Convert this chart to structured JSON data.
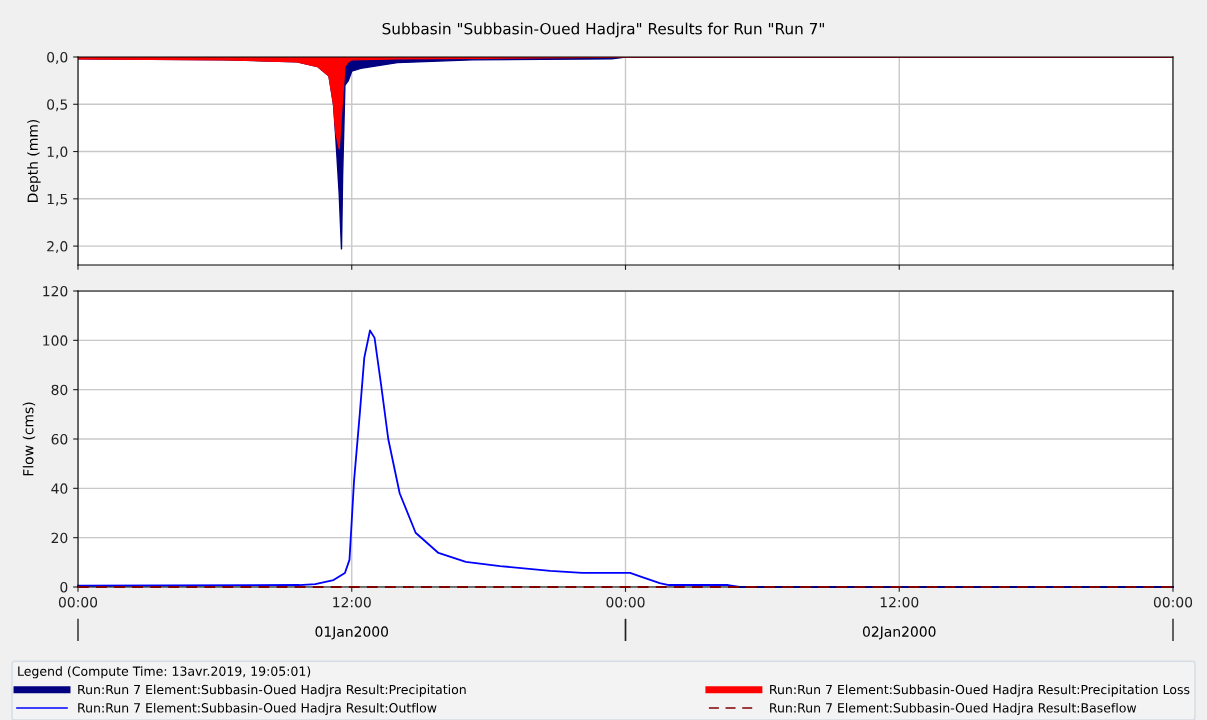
{
  "chart_data": [
    {
      "type": "area",
      "title": "Subbasin \"Subbasin-Oued Hadjra\" Results for Run \"Run 7\"",
      "ylabel": "Depth (mm)",
      "xlim": [
        "2000-01-01T00:00",
        "2000-01-03T00:00"
      ],
      "xticks": [
        {
          "value": "2000-01-01T00:00",
          "label": null
        },
        {
          "value": "2000-01-01T12:00",
          "label": null
        },
        {
          "value": "2000-01-02T00:00",
          "label": null
        },
        {
          "value": "2000-01-02T12:00",
          "label": null
        },
        {
          "value": "2000-01-03T00:00",
          "label": null
        }
      ],
      "ylim": [
        2.2,
        0
      ],
      "yticks": [
        {
          "value": 0,
          "label": "0,0"
        },
        {
          "value": 0.5,
          "label": "0,5"
        },
        {
          "value": 1,
          "label": "1,0"
        },
        {
          "value": 1.5,
          "label": "1,5"
        },
        {
          "value": 2,
          "label": "2,0"
        }
      ],
      "tick_labels": "y",
      "grid": true,
      "legend": "bottom",
      "series": [
        {
          "name": "Run:Run 7 Element:Subbasin-Oued Hadjra Result:Precipitation",
          "color": "#000080",
          "x": [
            "2000-01-01T00:00",
            "2000-01-01T06:24",
            "2000-01-01T08:00",
            "2000-01-01T09:36",
            "2000-01-01T10:30",
            "2000-01-01T11:00",
            "2000-01-01T11:12",
            "2000-01-01T11:18",
            "2000-01-01T11:27",
            "2000-01-01T11:33",
            "2000-01-01T11:36",
            "2000-01-01T11:42",
            "2000-01-01T11:51",
            "2000-01-01T12:00",
            "2000-01-01T12:24",
            "2000-01-01T14:00",
            "2000-01-01T17:18",
            "2000-01-01T23:24",
            "2000-01-02T00:00",
            "2000-01-03T00:00"
          ],
          "values": [
            0.02,
            0.03,
            0.04,
            0.05,
            0.1,
            0.2,
            0.5,
            0.85,
            1.45,
            2.03,
            1.25,
            0.3,
            0.25,
            0.15,
            0.12,
            0.06,
            0.03,
            0.02,
            0,
            0
          ]
        },
        {
          "name": "Run:Run 7 Element:Subbasin-Oued Hadjra Result:Precipitation Loss",
          "color": "#ff0000",
          "x": [
            "2000-01-01T00:00",
            "2000-01-01T06:24",
            "2000-01-01T08:00",
            "2000-01-01T09:36",
            "2000-01-01T10:30",
            "2000-01-01T11:00",
            "2000-01-01T11:12",
            "2000-01-01T11:18",
            "2000-01-01T11:27",
            "2000-01-01T11:33",
            "2000-01-01T11:42",
            "2000-01-01T11:51",
            "2000-01-01T12:00",
            "2000-01-01T14:00",
            "2000-01-02T00:00",
            "2000-01-03T00:00"
          ],
          "values": [
            0.02,
            0.03,
            0.04,
            0.05,
            0.1,
            0.2,
            0.5,
            0.8,
            0.97,
            0.6,
            0.1,
            0.05,
            0.03,
            0.02,
            0,
            0
          ]
        }
      ]
    },
    {
      "type": "line",
      "ylabel": "Flow (cms)",
      "xlim": [
        "2000-01-01T00:00",
        "2000-01-03T00:00"
      ],
      "xticks": [
        {
          "value": "2000-01-01T00:00",
          "label": "00:00"
        },
        {
          "value": "2000-01-01T12:00",
          "label": "12:00"
        },
        {
          "value": "2000-01-02T00:00",
          "label": "00:00"
        },
        {
          "value": "2000-01-02T12:00",
          "label": "12:00"
        },
        {
          "value": "2000-01-03T00:00",
          "label": "00:00"
        }
      ],
      "ylim": [
        0,
        120
      ],
      "yticks": [
        0,
        20,
        40,
        60,
        80,
        100,
        120
      ],
      "grid": true,
      "legend": "bottom",
      "legend_title": "Legend (Compute Time: 13avr.2019, 19:05:01)",
      "annotations": [
        "01Jan2000",
        "02Jan2000"
      ],
      "series": [
        {
          "name": "Run:Run 7 Element:Subbasin-Oued Hadjra Result:Outflow",
          "color": "#0000ff",
          "line_style": "solid",
          "x": [
            "2000-01-01T00:00",
            "2000-01-01T09:42",
            "2000-01-01T10:24",
            "2000-01-01T11:12",
            "2000-01-01T11:42",
            "2000-01-01T11:54",
            "2000-01-01T12:06",
            "2000-01-01T12:21",
            "2000-01-01T12:33",
            "2000-01-01T12:48",
            "2000-01-01T13:00",
            "2000-01-01T13:18",
            "2000-01-01T13:36",
            "2000-01-01T14:06",
            "2000-01-01T14:48",
            "2000-01-01T15:48",
            "2000-01-01T17:00",
            "2000-01-01T18:30",
            "2000-01-01T20:42",
            "2000-01-01T22:06",
            "2000-01-02T00:12",
            "2000-01-02T00:42",
            "2000-01-02T01:30",
            "2000-01-02T01:54",
            "2000-01-02T04:30",
            "2000-01-02T05:00",
            "2000-01-03T00:00"
          ],
          "values": [
            0.5,
            0.8,
            1.2,
            2.8,
            5.7,
            11,
            43,
            70,
            93,
            104,
            101,
            81,
            60,
            38,
            22,
            13.8,
            10.2,
            8.5,
            6.5,
            5.7,
            5.7,
            4.1,
            1.6,
            0.8,
            0.8,
            0,
            0
          ]
        },
        {
          "name": "Run:Run 7 Element:Subbasin-Oued Hadjra Result:Baseflow",
          "color": "#800000",
          "line_style": "dashed",
          "x": [
            "2000-01-01T00:00",
            "2000-01-03T00:00"
          ],
          "values": [
            0,
            0
          ]
        }
      ]
    }
  ]
}
